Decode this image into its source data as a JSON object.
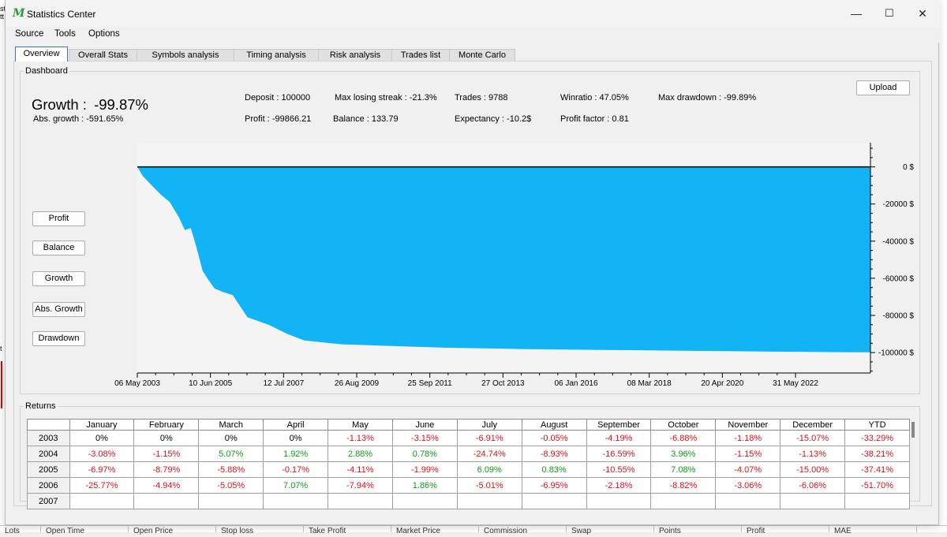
{
  "window": {
    "app_icon": "M",
    "title": "Statistics Center",
    "minimize": "—",
    "maximize": "☐",
    "close": "✕"
  },
  "menu": [
    "Source",
    "Tools",
    "Options"
  ],
  "tabs": [
    "Overview",
    "Overall Stats",
    "Symbols analysis",
    "Timing analysis",
    "Risk analysis",
    "Trades list",
    "Monte Carlo"
  ],
  "active_tab": "Overview",
  "dashboard": {
    "label": "Dashboard",
    "growth_label": "Growth :",
    "growth_value": "-99.87%",
    "abs_growth": "Abs. growth :  -591.65%",
    "deposit": "Deposit : 100000",
    "profit": "Profit :  -99866.21",
    "max_losing_streak": "Max losing streak : -21.3%",
    "balance": "Balance :  133.79",
    "trades": "Trades :  9788",
    "expectancy": "Expectancy :  -10.2$",
    "winratio": "Winratio :  47.05%",
    "profit_factor": "Profit factor :  0.81",
    "max_drawdown": "Max drawdown :  -99.89%",
    "upload": "Upload",
    "side_buttons": [
      "Profit",
      "Balance",
      "Growth",
      "Abs. Growth",
      "Drawdown"
    ]
  },
  "chart_data": {
    "type": "area",
    "series": [
      {
        "name": "Profit",
        "x": [
          "2003-05-06",
          "2003-07-01",
          "2003-10-01",
          "2004-01-01",
          "2004-04-01",
          "2004-07-01",
          "2004-09-01",
          "2004-11-01",
          "2005-01-01",
          "2005-03-01",
          "2005-05-01",
          "2005-07-01",
          "2005-10-01",
          "2006-01-01",
          "2006-06-01",
          "2007-01-01",
          "2007-07-12",
          "2008-01-01",
          "2009-01-01",
          "2010-01-01",
          "2011-01-01",
          "2012-01-01",
          "2013-01-01",
          "2014-01-01",
          "2015-01-01",
          "2016-01-01",
          "2017-01-01",
          "2018-01-01",
          "2019-01-01",
          "2020-01-01",
          "2021-01-01",
          "2022-01-01",
          "2023-01-01",
          "2023-10-01"
        ],
        "values": [
          0,
          -5000,
          -10000,
          -15000,
          -19000,
          -27000,
          -34000,
          -33000,
          -44000,
          -56000,
          -61000,
          -65500,
          -67500,
          -69000,
          -81000,
          -85000,
          -90000,
          -93500,
          -95500,
          -96200,
          -96800,
          -97400,
          -97700,
          -98100,
          -98300,
          -98500,
          -98700,
          -98900,
          -99100,
          -99300,
          -99500,
          -99600,
          -99800,
          -99870
        ]
      }
    ],
    "x_tick_labels": [
      "06 May 2003",
      "10 Jun 2005",
      "12 Jul 2007",
      "26 Aug 2009",
      "25 Sep 2011",
      "27 Oct 2013",
      "06 Jan 2016",
      "08 Mar 2018",
      "20 Apr 2020",
      "31 May 2022"
    ],
    "y_tick_values": [
      0,
      -20000,
      -40000,
      -60000,
      -80000,
      -100000
    ],
    "y_tick_labels": [
      "0 $",
      "-20000 $",
      "-40000 $",
      "-60000 $",
      "-80000 $",
      "-100000 $"
    ],
    "ylim": [
      -111000,
      13000
    ],
    "xlim": [
      "2003-05-06",
      "2023-10-15"
    ],
    "grid": false,
    "fill_color": "#12b4f5",
    "baseline_color": "#000000"
  },
  "returns": {
    "label": "Returns",
    "headers": [
      "January",
      "February",
      "March",
      "April",
      "May",
      "June",
      "July",
      "August",
      "September",
      "October",
      "November",
      "December",
      "YTD"
    ],
    "rows": [
      {
        "year": "2003",
        "values": [
          "0%",
          "0%",
          "0%",
          "0%",
          "-1.13%",
          "-3.15%",
          "-6.91%",
          "-0.05%",
          "-4.19%",
          "-6.88%",
          "-1.18%",
          "-15.07%",
          "-33.29%"
        ]
      },
      {
        "year": "2004",
        "values": [
          "-3.08%",
          "-1.15%",
          "5.07%",
          "1.92%",
          "2.88%",
          "0.78%",
          "-24.74%",
          "-8.93%",
          "-16.59%",
          "3.96%",
          "-1.15%",
          "-1.13%",
          "-38.21%"
        ]
      },
      {
        "year": "2005",
        "values": [
          "-6.97%",
          "-8.79%",
          "-5.88%",
          "-0.17%",
          "-4.11%",
          "-1.99%",
          "6.09%",
          "0.83%",
          "-10.55%",
          "7.08%",
          "-4.07%",
          "-15.00%",
          "-37.41%"
        ]
      },
      {
        "year": "2006",
        "values": [
          "-25.77%",
          "-4.94%",
          "-5.05%",
          "7.07%",
          "-7.94%",
          "1.86%",
          "-5.01%",
          "-6.95%",
          "-2.18%",
          "-8.82%",
          "-3.06%",
          "-6.06%",
          "-51.70%"
        ]
      },
      {
        "year": "2007",
        "values": [
          "",
          "",
          "",
          "",
          "",
          "",
          "",
          "",
          "",
          "",
          "",
          "",
          ""
        ]
      }
    ],
    "colors": {
      "negative": "#e0101e",
      "positive": "#0f9a1a",
      "zero": "#000000"
    }
  },
  "background_table_headers": [
    "Lots",
    "Open Time",
    "Open Price",
    "Stop loss",
    "Take Profit",
    "Market Price",
    "Commission",
    "Swap",
    "Points",
    "Profit",
    "MAE"
  ]
}
